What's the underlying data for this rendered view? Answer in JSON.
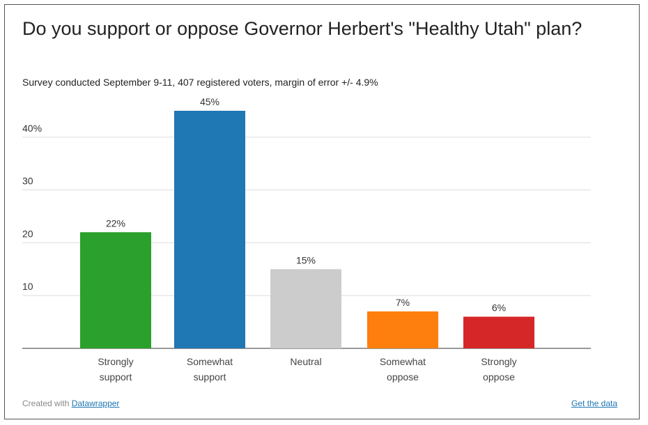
{
  "title": "Do you support or oppose Governor Herbert's \"Healthy Utah\" plan?",
  "subtitle": "Survey conducted September 9-11, 407 registered voters, margin of error +/- 4.9%",
  "footer": {
    "created_with": "Created with",
    "datawrapper_link": "Datawrapper",
    "get_data_link": "Get the data"
  },
  "chart_data": {
    "type": "bar",
    "categories": [
      [
        "Strongly",
        "support"
      ],
      [
        "Somewhat",
        "support"
      ],
      [
        "Neutral"
      ],
      [
        "Somewhat",
        "oppose"
      ],
      [
        "Strongly",
        "oppose"
      ]
    ],
    "values": [
      22,
      45,
      15,
      7,
      6
    ],
    "value_labels": [
      "22%",
      "45%",
      "15%",
      "7%",
      "6%"
    ],
    "colors": [
      "#2ca02c",
      "#1f77b4",
      "#cccccc",
      "#ff7f0e",
      "#d62728"
    ],
    "yticks": [
      {
        "value": 10,
        "label": "10"
      },
      {
        "value": 20,
        "label": "20"
      },
      {
        "value": 30,
        "label": "30"
      },
      {
        "value": 40,
        "label": "40%"
      }
    ],
    "ylim": [
      0,
      45
    ],
    "grid": true
  }
}
